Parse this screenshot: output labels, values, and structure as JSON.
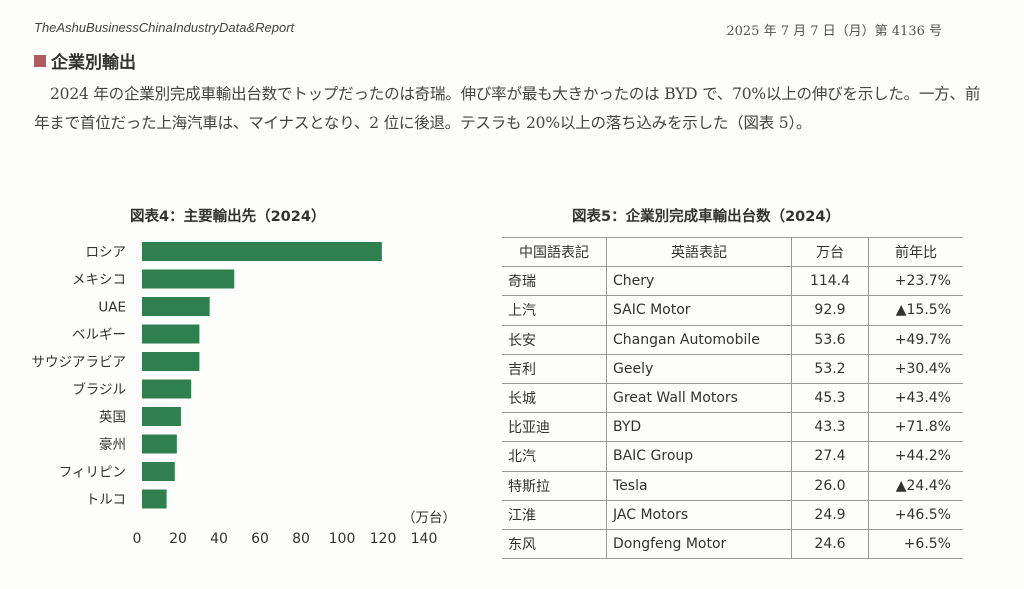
{
  "header": {
    "publisher": "TheAshuBusinessChinaIndustryData&Report",
    "date_issue": "2025 年 7 月 7 日（月）第 4136 号"
  },
  "section": {
    "title": "企業別輸出",
    "paragraph": "2024 年の企業別完成車輸出台数でトップだったのは奇瑞。伸び率が最も大きかったのは BYD で、70%以上の伸びを示した。一方、前年まで首位だった上海汽車は、マイナスとなり、2 位に後退。テスラも 20%以上の落ち込みを示した（図表 5）。"
  },
  "figure4": {
    "title": "図表4：主要輸出先（2024）",
    "unit": "（万台）"
  },
  "chart_data": {
    "type": "bar",
    "orientation": "horizontal",
    "categories": [
      "ロシア",
      "メキシコ",
      "UAE",
      "ベルギー",
      "サウジアラビア",
      "ブラジル",
      "英国",
      "豪州",
      "フィリピン",
      "トルコ"
    ],
    "values": [
      117,
      45,
      33,
      28,
      28,
      24,
      19,
      17,
      16,
      12
    ],
    "xticks": [
      "0",
      "20",
      "40",
      "60",
      "80",
      "100",
      "120",
      "140"
    ],
    "xlim": [
      0,
      140
    ],
    "bar_color": "#2f7f4f"
  },
  "figure5": {
    "title": "図表5：企業別完成車輸出台数（2024）",
    "columns": [
      "中国語表記",
      "英語表記",
      "万台",
      "前年比"
    ],
    "rows": [
      {
        "cn": "奇瑞",
        "en": "Chery",
        "units": "114.4",
        "yoy": "+23.7%"
      },
      {
        "cn": "上汽",
        "en": "SAIC Motor",
        "units": "92.9",
        "yoy": "▲15.5%"
      },
      {
        "cn": "长安",
        "en": "Changan Automobile",
        "units": "53.6",
        "yoy": "+49.7%"
      },
      {
        "cn": "吉利",
        "en": "Geely",
        "units": "53.2",
        "yoy": "+30.4%"
      },
      {
        "cn": "长城",
        "en": "Great Wall Motors",
        "units": "45.3",
        "yoy": "+43.4%"
      },
      {
        "cn": "比亚迪",
        "en": "BYD",
        "units": "43.3",
        "yoy": "+71.8%"
      },
      {
        "cn": "北汽",
        "en": "BAIC Group",
        "units": "27.4",
        "yoy": "+44.2%"
      },
      {
        "cn": "特斯拉",
        "en": "Tesla",
        "units": "26.0",
        "yoy": "▲24.4%"
      },
      {
        "cn": "江淮",
        "en": "JAC Motors",
        "units": "24.9",
        "yoy": "+46.5%"
      },
      {
        "cn": "东风",
        "en": "Dongfeng Motor",
        "units": "24.6",
        "yoy": "+6.5%"
      }
    ]
  }
}
